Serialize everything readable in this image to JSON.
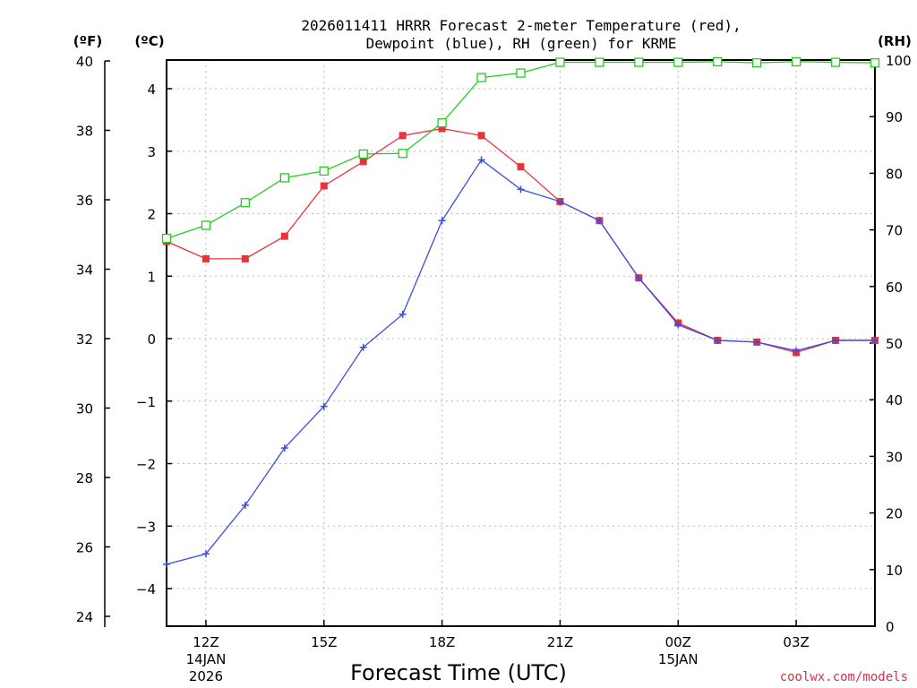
{
  "chart_data": {
    "type": "line",
    "title_line1": "2026011411 HRRR Forecast 2-meter Temperature (red),",
    "title_line2": "Dewpoint (blue), RH (green) for KRME",
    "xlabel": "Forecast Time (UTC)",
    "credit": "coolwx.com/models",
    "units": {
      "left_f": "(ºF)",
      "left_c": "(ºC)",
      "right_rh": "(RH)"
    },
    "x_ticks": [
      {
        "label": "12Z",
        "sub1": "14JAN",
        "sub2": "2026",
        "hour": 12
      },
      {
        "label": "15Z",
        "sub1": "",
        "sub2": "",
        "hour": 15
      },
      {
        "label": "18Z",
        "sub1": "",
        "sub2": "",
        "hour": 18
      },
      {
        "label": "21Z",
        "sub1": "",
        "sub2": "",
        "hour": 21
      },
      {
        "label": "00Z",
        "sub1": "15JAN",
        "sub2": "",
        "hour": 24
      },
      {
        "label": "03Z",
        "sub1": "",
        "sub2": "",
        "hour": 27
      }
    ],
    "x_range": [
      11,
      29
    ],
    "f_ticks": [
      24,
      26,
      28,
      30,
      32,
      34,
      36,
      38,
      40
    ],
    "f_labels": [
      "24",
      "26",
      "28",
      "30",
      "32",
      "34",
      "36",
      "38",
      "40"
    ],
    "f_range": [
      24,
      40
    ],
    "c_ticks": [
      -4,
      -3,
      -2,
      -1,
      0,
      1,
      2,
      3,
      4
    ],
    "c_labels": [
      "−4",
      "−3",
      "−2",
      "−1",
      "0",
      "1",
      "2",
      "3",
      "4"
    ],
    "rh_ticks": [
      0,
      10,
      20,
      30,
      40,
      50,
      60,
      70,
      80,
      90,
      100
    ],
    "rh_labels": [
      "0",
      "10",
      "20",
      "30",
      "40",
      "50",
      "60",
      "70",
      "80",
      "90",
      "100"
    ],
    "rh_range": [
      0,
      100
    ],
    "series": [
      {
        "name": "Temperature",
        "unit": "F",
        "color": "#e8333a",
        "hours": [
          11,
          12,
          13,
          14,
          15,
          16,
          17,
          18,
          19,
          20,
          21,
          22,
          23,
          24,
          25,
          26,
          27,
          28,
          29
        ],
        "values": [
          34.8,
          34.3,
          34.3,
          34.95,
          36.4,
          37.1,
          37.85,
          38.05,
          37.85,
          36.95,
          35.95,
          35.4,
          33.75,
          32.45,
          31.95,
          31.9,
          31.6,
          31.95,
          31.95
        ]
      },
      {
        "name": "Dewpoint",
        "unit": "F",
        "color": "#3a4ee0",
        "hours": [
          11,
          12,
          13,
          14,
          15,
          16,
          17,
          18,
          19,
          20,
          21,
          22,
          23,
          24,
          25,
          26,
          27,
          28,
          29
        ],
        "values": [
          25.5,
          25.8,
          27.2,
          28.85,
          30.05,
          31.75,
          32.7,
          35.4,
          37.15,
          36.3,
          35.95,
          35.4,
          33.75,
          32.4,
          31.95,
          31.9,
          31.65,
          31.95,
          31.95
        ]
      },
      {
        "name": "RH",
        "unit": "%",
        "color": "#22cc22",
        "hours": [
          11,
          12,
          13,
          14,
          15,
          16,
          17,
          18,
          19,
          20,
          21,
          22,
          23,
          24,
          25,
          26,
          27,
          28,
          29
        ],
        "values": [
          68.5,
          70.8,
          74.8,
          79.2,
          80.4,
          83.4,
          83.5,
          88.9,
          96.9,
          97.7,
          99.6,
          99.6,
          99.6,
          99.6,
          99.7,
          99.5,
          99.7,
          99.6,
          99.5
        ]
      }
    ]
  }
}
